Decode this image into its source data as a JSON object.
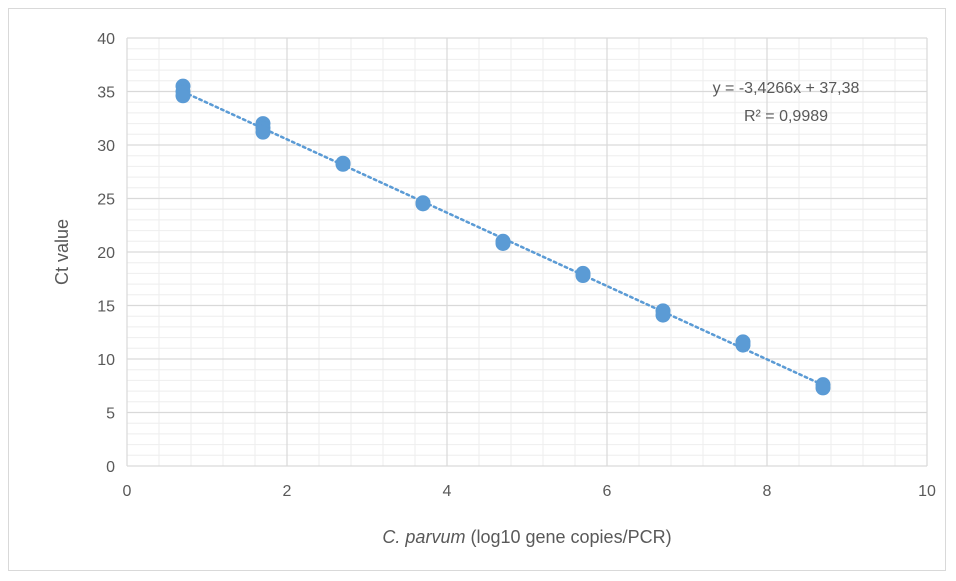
{
  "chart_data": {
    "type": "scatter",
    "xlabel_italic": "C. parvum",
    "xlabel_rest": " (log10 gene copies/PCR)",
    "ylabel": "Ct value",
    "xlim": [
      0,
      10
    ],
    "ylim": [
      0,
      40
    ],
    "x_ticks": [
      0,
      2,
      4,
      6,
      8,
      10
    ],
    "y_ticks": [
      0,
      5,
      10,
      15,
      20,
      25,
      30,
      35,
      40
    ],
    "grid": true,
    "points": [
      {
        "x": 0.7,
        "y": 35.5
      },
      {
        "x": 0.7,
        "y": 35.0
      },
      {
        "x": 0.7,
        "y": 34.6
      },
      {
        "x": 1.7,
        "y": 32.0
      },
      {
        "x": 1.7,
        "y": 31.6
      },
      {
        "x": 1.7,
        "y": 31.2
      },
      {
        "x": 2.7,
        "y": 28.3
      },
      {
        "x": 2.7,
        "y": 28.2
      },
      {
        "x": 3.7,
        "y": 24.6
      },
      {
        "x": 3.7,
        "y": 24.5
      },
      {
        "x": 4.7,
        "y": 21.0
      },
      {
        "x": 4.7,
        "y": 20.8
      },
      {
        "x": 5.7,
        "y": 18.0
      },
      {
        "x": 5.7,
        "y": 17.8
      },
      {
        "x": 6.7,
        "y": 14.5
      },
      {
        "x": 6.7,
        "y": 14.1
      },
      {
        "x": 7.7,
        "y": 11.6
      },
      {
        "x": 7.7,
        "y": 11.3
      },
      {
        "x": 8.7,
        "y": 7.6
      },
      {
        "x": 8.7,
        "y": 7.3
      }
    ],
    "trendline": {
      "slope": -3.4266,
      "intercept": 37.38,
      "x_range": [
        0.7,
        8.7
      ]
    },
    "equation_text": "y = -3,4266x + 37,38",
    "r2_text": "R² = 0,9989",
    "colors": {
      "marker": "#5b9bd5",
      "trendline": "#5b9bd5",
      "grid": "#d9d9d9",
      "text": "#595959"
    }
  }
}
